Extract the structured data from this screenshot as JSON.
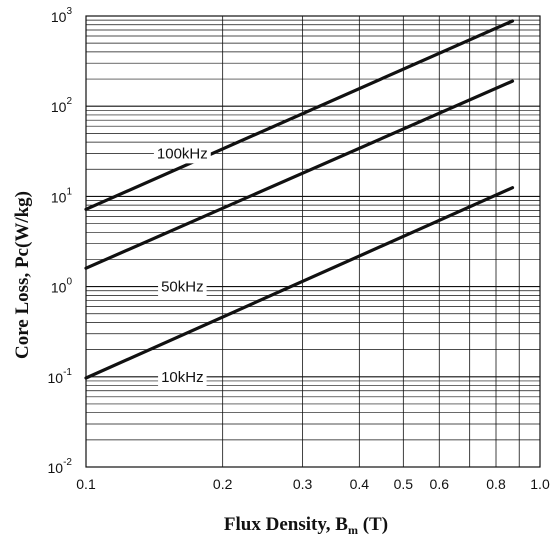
{
  "chart_data": {
    "type": "line",
    "xscale": "log",
    "yscale": "log",
    "xlabel": "Flux Density, Bm (T)",
    "xlabel_parts": {
      "main": "Flux Density, B",
      "sub": "m",
      "tail": " (T)"
    },
    "ylabel": "Core Loss, Pc(W/kg)",
    "xlim": [
      0.1,
      1.0
    ],
    "ylim": [
      0.01,
      1000
    ],
    "grid": true,
    "xticks": [
      {
        "value": 0.1,
        "label": "0.1"
      },
      {
        "value": 0.2,
        "label": "0.2"
      },
      {
        "value": 0.3,
        "label": "0.3"
      },
      {
        "value": 0.4,
        "label": "0.4"
      },
      {
        "value": 0.5,
        "label": "0.5"
      },
      {
        "value": 0.6,
        "label": "0.6"
      },
      {
        "value": 0.8,
        "label": "0.8"
      },
      {
        "value": 1.0,
        "label": "1.0"
      }
    ],
    "yticks": [
      {
        "value": 0.01,
        "base": "10",
        "exp": "-2"
      },
      {
        "value": 0.1,
        "base": "10",
        "exp": "-1"
      },
      {
        "value": 1,
        "base": "10",
        "exp": "0"
      },
      {
        "value": 10,
        "base": "10",
        "exp": "1"
      },
      {
        "value": 100,
        "base": "10",
        "exp": "2"
      },
      {
        "value": 1000,
        "base": "10",
        "exp": "3"
      }
    ],
    "series": [
      {
        "name": "100kHz",
        "x": [
          0.1,
          0.87
        ],
        "y": [
          7.2,
          880
        ],
        "label_at": {
          "x": 0.163,
          "y": 30
        }
      },
      {
        "name": "50kHz",
        "x": [
          0.1,
          0.87
        ],
        "y": [
          1.6,
          190
        ],
        "label_at": {
          "x": 0.163,
          "y": 1.0
        }
      },
      {
        "name": "10kHz",
        "x": [
          0.1,
          0.87
        ],
        "y": [
          0.097,
          12.5
        ],
        "label_at": {
          "x": 0.163,
          "y": 0.1
        }
      }
    ]
  }
}
